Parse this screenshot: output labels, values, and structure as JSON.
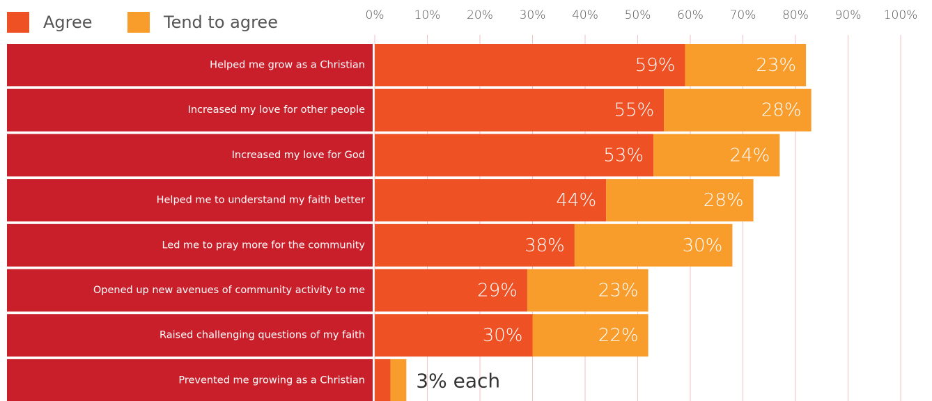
{
  "chart_data": {
    "type": "stacked_barh",
    "categories": [
      "Helped me grow as a Christian",
      "Increased my love for other people",
      "Increased my love for God",
      "Helped me to understand my faith better",
      "Led me to pray more for the community",
      "Opened up new avenues of community activity to me",
      "Raised challenging questions of my faith",
      "Prevented me growing as a Christian"
    ],
    "series": [
      {
        "name": "Agree",
        "color": "#ee5124",
        "values": [
          59,
          55,
          53,
          44,
          38,
          29,
          30,
          3
        ],
        "value_labels": [
          "59%",
          "55%",
          "53%",
          "44%",
          "38%",
          "29%",
          "30%",
          null
        ]
      },
      {
        "name": "Tend to agree",
        "color": "#f89c2b",
        "values": [
          23,
          28,
          24,
          28,
          30,
          23,
          22,
          3
        ],
        "value_labels": [
          "23%",
          "28%",
          "24%",
          "28%",
          "30%",
          "23%",
          "22%",
          null
        ]
      }
    ],
    "annotations": [
      "3% each"
    ],
    "xlim": [
      0,
      100
    ],
    "xticks": [
      {
        "value": 0,
        "label": "0%"
      },
      {
        "value": 10,
        "label": "10%"
      },
      {
        "value": 20,
        "label": "20%"
      },
      {
        "value": 30,
        "label": "30%"
      },
      {
        "value": 40,
        "label": "40%"
      },
      {
        "value": 50,
        "label": "50%"
      },
      {
        "value": 60,
        "label": "60%"
      },
      {
        "value": 70,
        "label": "70%"
      },
      {
        "value": 80,
        "label": "80%"
      },
      {
        "value": 90,
        "label": "90%"
      },
      {
        "value": 100,
        "label": "100%"
      }
    ],
    "grid": true,
    "category_color": "#c91f2b"
  }
}
